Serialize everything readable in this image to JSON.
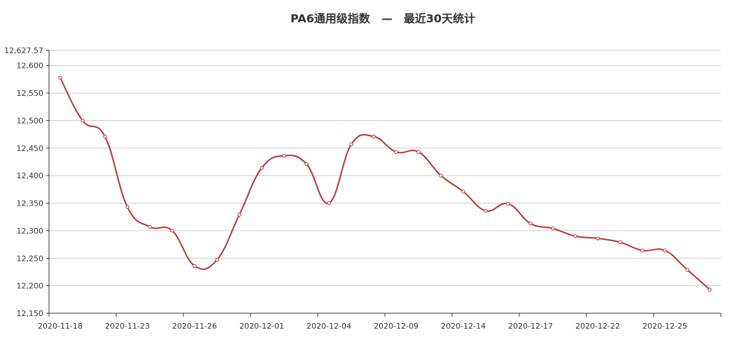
{
  "title": "PA6通用级指数　—　最近30天统计",
  "chart_data": {
    "type": "line",
    "title": "PA6通用级指数　—　最近30天统计",
    "xlabel": "",
    "ylabel": "",
    "ylim": [
      12150,
      12627.57
    ],
    "y_ticks": [
      "12,150",
      "12,200",
      "12,250",
      "12,300",
      "12,350",
      "12,400",
      "12,450",
      "12,500",
      "12,550",
      "12,600",
      "12,627.57"
    ],
    "x_tick_labels": [
      "2020-11-18",
      "2020-11-23",
      "2020-11-26",
      "2020-12-01",
      "2020-12-04",
      "2020-12-09",
      "2020-12-14",
      "2020-12-17",
      "2020-12-22",
      "2020-12-25"
    ],
    "grid": true,
    "smooth": true,
    "series": [
      {
        "values": [
          12578,
          12500,
          12471,
          12343,
          12307,
          12300,
          12236,
          12247,
          12329,
          12414,
          12436,
          12421,
          12350,
          12457,
          12471,
          12443,
          12443,
          12400,
          12371,
          12336,
          12349,
          12313,
          12304,
          12290,
          12286,
          12279,
          12264,
          12264,
          12229,
          12193
        ]
      }
    ],
    "colors": {
      "line": "#b83232",
      "grid": "#cccccc",
      "axis": "#333333"
    }
  }
}
